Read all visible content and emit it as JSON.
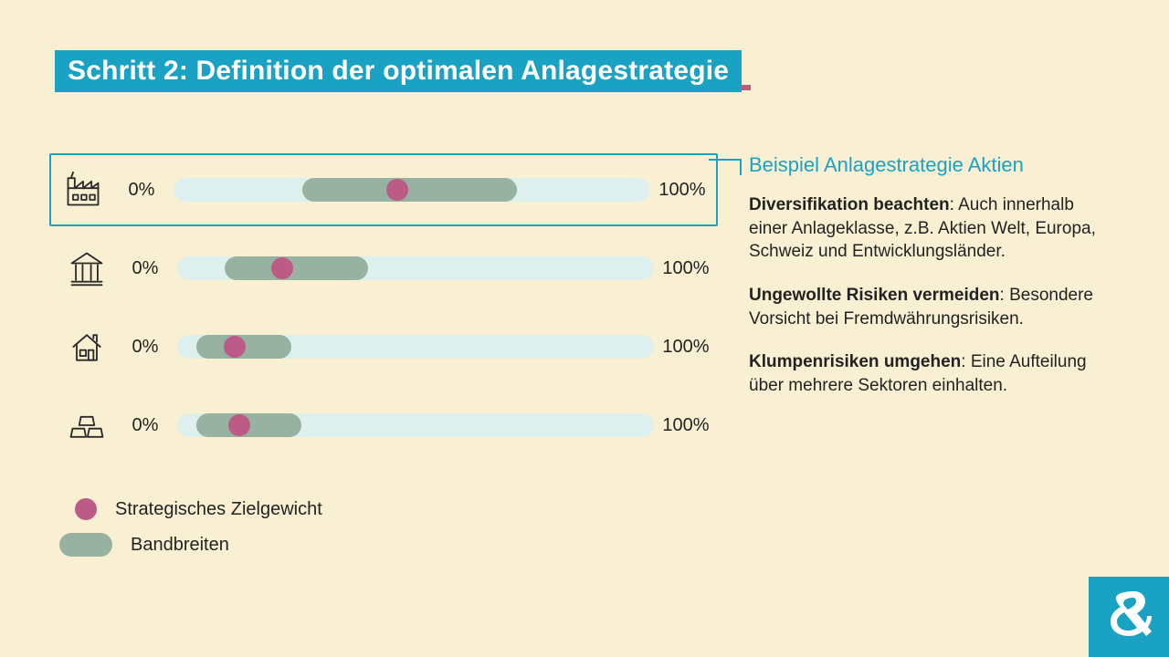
{
  "colors": {
    "bg": "#f9f0d3",
    "title_bg": "#1aa2c4",
    "title_underline": "#c05a84",
    "title_text": "#ffffff",
    "text": "#222222",
    "accent": "#1aa2c4",
    "track": "#def0ed",
    "band": "#98b2a2",
    "dot": "#bb5b86",
    "icon": "#2a2a2a",
    "logo_bg": "#1aa2c4",
    "logo_fg": "#ffffff"
  },
  "title": "Schritt 2: Definition der optimalen Anlagestrategie",
  "axis": {
    "min_label": "0%",
    "max_label": "100%"
  },
  "rows": [
    {
      "icon": "factory",
      "highlight": true,
      "band_start": 27,
      "band_end": 72,
      "dot": 47
    },
    {
      "icon": "bank",
      "highlight": false,
      "band_start": 10,
      "band_end": 40,
      "dot": 22
    },
    {
      "icon": "house",
      "highlight": false,
      "band_start": 4,
      "band_end": 24,
      "dot": 12
    },
    {
      "icon": "gold",
      "highlight": false,
      "band_start": 4,
      "band_end": 26,
      "dot": 13
    }
  ],
  "legend": {
    "dot_label": "Strategisches Zielgewicht",
    "band_label": "Bandbreiten"
  },
  "side": {
    "title": "Beispiel Anlagestrategie Aktien",
    "items": [
      {
        "bold": "Diversifikation beachten",
        "text": ": Auch innerhalb einer Anlageklasse, z.B. Aktien Welt, Europa, Schweiz und Entwicklungsländer."
      },
      {
        "bold": "Ungewollte Risiken vermeiden",
        "text": ": Besondere Vorsicht bei Fremdwährungsrisiken."
      },
      {
        "bold": "Klumpenrisiken umgehen",
        "text": ": Eine Aufteilung über mehrere Sektoren einhalten."
      }
    ]
  }
}
